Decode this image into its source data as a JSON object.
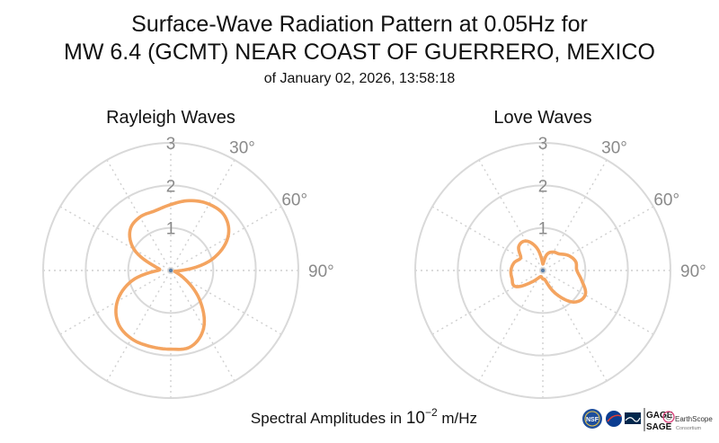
{
  "header": {
    "title_line1": "Surface-Wave Radiation Pattern at 0.05Hz for",
    "title_line2": "MW 6.4 (GCMT) NEAR COAST OF GUERRERO, MEXICO",
    "subtitle": "of January 02, 2026, 13:58:18"
  },
  "footer": {
    "amplitude_label_prefix": "Spectral Amplitudes in ",
    "amplitude_label_base": "10",
    "amplitude_label_exp": "−2",
    "amplitude_label_unit": " m/Hz"
  },
  "logos": {
    "nsf": "NSF",
    "gage": "GAGE",
    "sage": "SAGE",
    "earthscope": "EarthScope",
    "consortium": "Consortium"
  },
  "colors": {
    "pattern": "#f4a460",
    "ring": "#d9d9d9",
    "tick": "#8a8a8a"
  },
  "chart_data": [
    {
      "type": "polar-line",
      "title": "Rayleigh Waves",
      "r_ticks": [
        1,
        2,
        3
      ],
      "r_tick_labels": [
        "1",
        "2",
        "3"
      ],
      "angle_ticks": [
        30,
        60,
        90
      ],
      "angle_tick_labels": [
        "30°",
        "60°",
        "90°"
      ],
      "rlim": [
        0,
        3
      ],
      "angles_deg": [
        0,
        15,
        30,
        45,
        60,
        75,
        90,
        105,
        120,
        135,
        150,
        165,
        180,
        195,
        210,
        225,
        240,
        255,
        270,
        285,
        300,
        315,
        330,
        345
      ],
      "values": [
        1.55,
        1.7,
        1.8,
        1.8,
        1.55,
        1.0,
        0.25,
        0.1,
        0.35,
        0.95,
        1.55,
        1.85,
        1.85,
        1.85,
        1.85,
        1.75,
        1.45,
        0.95,
        0.3,
        0.4,
        1.0,
        1.35,
        1.45,
        1.45
      ]
    },
    {
      "type": "polar-line",
      "title": "Love Waves",
      "r_ticks": [
        1,
        2,
        3
      ],
      "r_tick_labels": [
        "1",
        "2",
        "3"
      ],
      "angle_ticks": [
        30,
        60,
        90
      ],
      "angle_tick_labels": [
        "30°",
        "60°",
        "90°"
      ],
      "rlim": [
        0,
        3
      ],
      "angles_deg": [
        0,
        15,
        30,
        45,
        60,
        75,
        90,
        105,
        120,
        135,
        150,
        165,
        180,
        195,
        210,
        225,
        240,
        255,
        270,
        285,
        300,
        315,
        330,
        345
      ],
      "values": [
        0.15,
        0.4,
        0.5,
        0.55,
        0.7,
        0.8,
        0.8,
        0.95,
        1.15,
        1.05,
        0.65,
        0.25,
        0.2,
        0.15,
        0.2,
        0.4,
        0.75,
        0.75,
        0.75,
        0.7,
        0.6,
        0.8,
        0.8,
        0.55
      ]
    }
  ]
}
